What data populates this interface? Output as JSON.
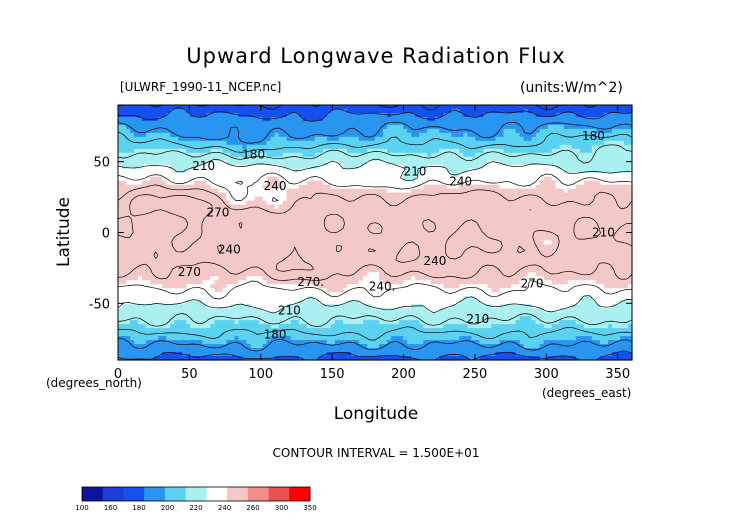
{
  "chart_data": {
    "type": "heatmap",
    "title": "Upward Longwave Radiation Flux",
    "source_label": "[ULWRF_1990-11_NCEP.nc]",
    "units_label": "(units:W/m^2)",
    "xlabel": "Longitude",
    "xlabel_units": "(degrees_east)",
    "ylabel": "Latitude",
    "ylabel_units": "(degrees_north)",
    "xlim": [
      0,
      360
    ],
    "ylim": [
      -90,
      90
    ],
    "x_ticks": [
      0,
      50,
      100,
      150,
      200,
      250,
      300,
      350
    ],
    "y_ticks": [
      -50,
      0,
      50
    ],
    "contour_interval_text": "CONTOUR INTERVAL = 1.500E+01",
    "colorbar": {
      "levels": [
        100,
        160,
        180,
        200,
        220,
        240,
        260,
        300,
        350
      ],
      "colors": [
        "#0a14a0",
        "#1e3cd8",
        "#1450f0",
        "#2896f0",
        "#5ad2f0",
        "#aaf0f0",
        "#ffffff",
        "#f5c8c8",
        "#f58c8c",
        "#eb5050",
        "#ff0000"
      ]
    },
    "contour_labels": [
      {
        "text": "180",
        "lon": 95,
        "lat": 55
      },
      {
        "text": "180",
        "lon": 333,
        "lat": 68
      },
      {
        "text": "210",
        "lon": 60,
        "lat": 47
      },
      {
        "text": "210",
        "lon": 208,
        "lat": 43
      },
      {
        "text": "210",
        "lon": 340,
        "lat": 0
      },
      {
        "text": "210",
        "lon": 120,
        "lat": -55
      },
      {
        "text": "210",
        "lon": 252,
        "lat": -61
      },
      {
        "text": "180",
        "lon": 110,
        "lat": -72
      },
      {
        "text": "240",
        "lon": 110,
        "lat": 33
      },
      {
        "text": "240",
        "lon": 240,
        "lat": 36
      },
      {
        "text": "240",
        "lon": 78,
        "lat": -12
      },
      {
        "text": "240",
        "lon": 222,
        "lat": -20
      },
      {
        "text": "240.",
        "lon": 185,
        "lat": -38
      },
      {
        "text": "270",
        "lon": 70,
        "lat": 14
      },
      {
        "text": "270",
        "lon": 50,
        "lat": -28
      },
      {
        "text": "270.",
        "lon": 135,
        "lat": -35
      },
      {
        "text": "270",
        "lon": 290,
        "lat": -36
      }
    ]
  }
}
